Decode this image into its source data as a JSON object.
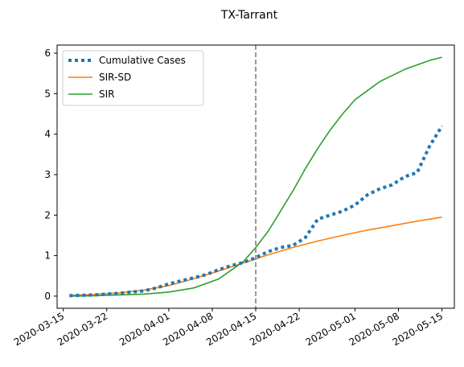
{
  "chart_data": {
    "type": "line",
    "title": "TX-Tarrant",
    "xlabel": "",
    "ylabel": "",
    "x_axis": "date",
    "xlim": [
      "2020-03-14",
      "2020-05-17"
    ],
    "ylim": [
      -0.3,
      6.2
    ],
    "x_ticks": [
      "2020-03-15",
      "2020-03-22",
      "2020-04-01",
      "2020-04-08",
      "2020-04-15",
      "2020-04-22",
      "2020-05-01",
      "2020-05-08",
      "2020-05-15"
    ],
    "y_ticks": [
      0,
      1,
      2,
      3,
      4,
      5,
      6
    ],
    "grid": false,
    "legend_position": "top-left",
    "vline": {
      "x": "2020-04-15",
      "color": "#808080",
      "style": "dashed"
    },
    "series": [
      {
        "name": "Cumulative Cases",
        "color": "#1f77b4",
        "style": "dotted",
        "x": [
          "2020-03-16",
          "2020-03-18",
          "2020-03-20",
          "2020-03-22",
          "2020-03-24",
          "2020-03-26",
          "2020-03-28",
          "2020-03-30",
          "2020-04-01",
          "2020-04-03",
          "2020-04-05",
          "2020-04-07",
          "2020-04-09",
          "2020-04-11",
          "2020-04-13",
          "2020-04-15",
          "2020-04-17",
          "2020-04-19",
          "2020-04-21",
          "2020-04-23",
          "2020-04-25",
          "2020-04-27",
          "2020-04-29",
          "2020-05-01",
          "2020-05-03",
          "2020-05-05",
          "2020-05-07",
          "2020-05-09",
          "2020-05-11",
          "2020-05-13",
          "2020-05-15"
        ],
        "values": [
          0.01,
          0.02,
          0.03,
          0.05,
          0.07,
          0.1,
          0.13,
          0.2,
          0.3,
          0.38,
          0.45,
          0.53,
          0.65,
          0.75,
          0.83,
          0.95,
          1.1,
          1.2,
          1.25,
          1.45,
          1.9,
          2.0,
          2.1,
          2.25,
          2.5,
          2.65,
          2.75,
          2.95,
          3.05,
          3.7,
          4.2
        ]
      },
      {
        "name": "SIR-SD",
        "color": "#ff7f0e",
        "style": "solid",
        "x": [
          "2020-03-16",
          "2020-03-20",
          "2020-03-24",
          "2020-03-28",
          "2020-04-01",
          "2020-04-05",
          "2020-04-09",
          "2020-04-13",
          "2020-04-17",
          "2020-04-21",
          "2020-04-25",
          "2020-04-29",
          "2020-05-03",
          "2020-05-07",
          "2020-05-11",
          "2020-05-15"
        ],
        "values": [
          0.02,
          0.04,
          0.08,
          0.15,
          0.26,
          0.43,
          0.62,
          0.82,
          1.02,
          1.2,
          1.36,
          1.5,
          1.63,
          1.74,
          1.85,
          1.95
        ]
      },
      {
        "name": "SIR",
        "color": "#2ca02c",
        "style": "solid",
        "x": [
          "2020-03-16",
          "2020-03-20",
          "2020-03-24",
          "2020-03-28",
          "2020-04-01",
          "2020-04-05",
          "2020-04-09",
          "2020-04-13",
          "2020-04-15",
          "2020-04-17",
          "2020-04-19",
          "2020-04-21",
          "2020-04-23",
          "2020-04-25",
          "2020-04-27",
          "2020-04-29",
          "2020-05-01",
          "2020-05-05",
          "2020-05-09",
          "2020-05-13",
          "2020-05-15"
        ],
        "values": [
          0.0,
          0.01,
          0.03,
          0.05,
          0.1,
          0.2,
          0.42,
          0.85,
          1.2,
          1.6,
          2.1,
          2.6,
          3.15,
          3.65,
          4.1,
          4.5,
          4.85,
          5.3,
          5.6,
          5.82,
          5.9
        ]
      }
    ]
  }
}
